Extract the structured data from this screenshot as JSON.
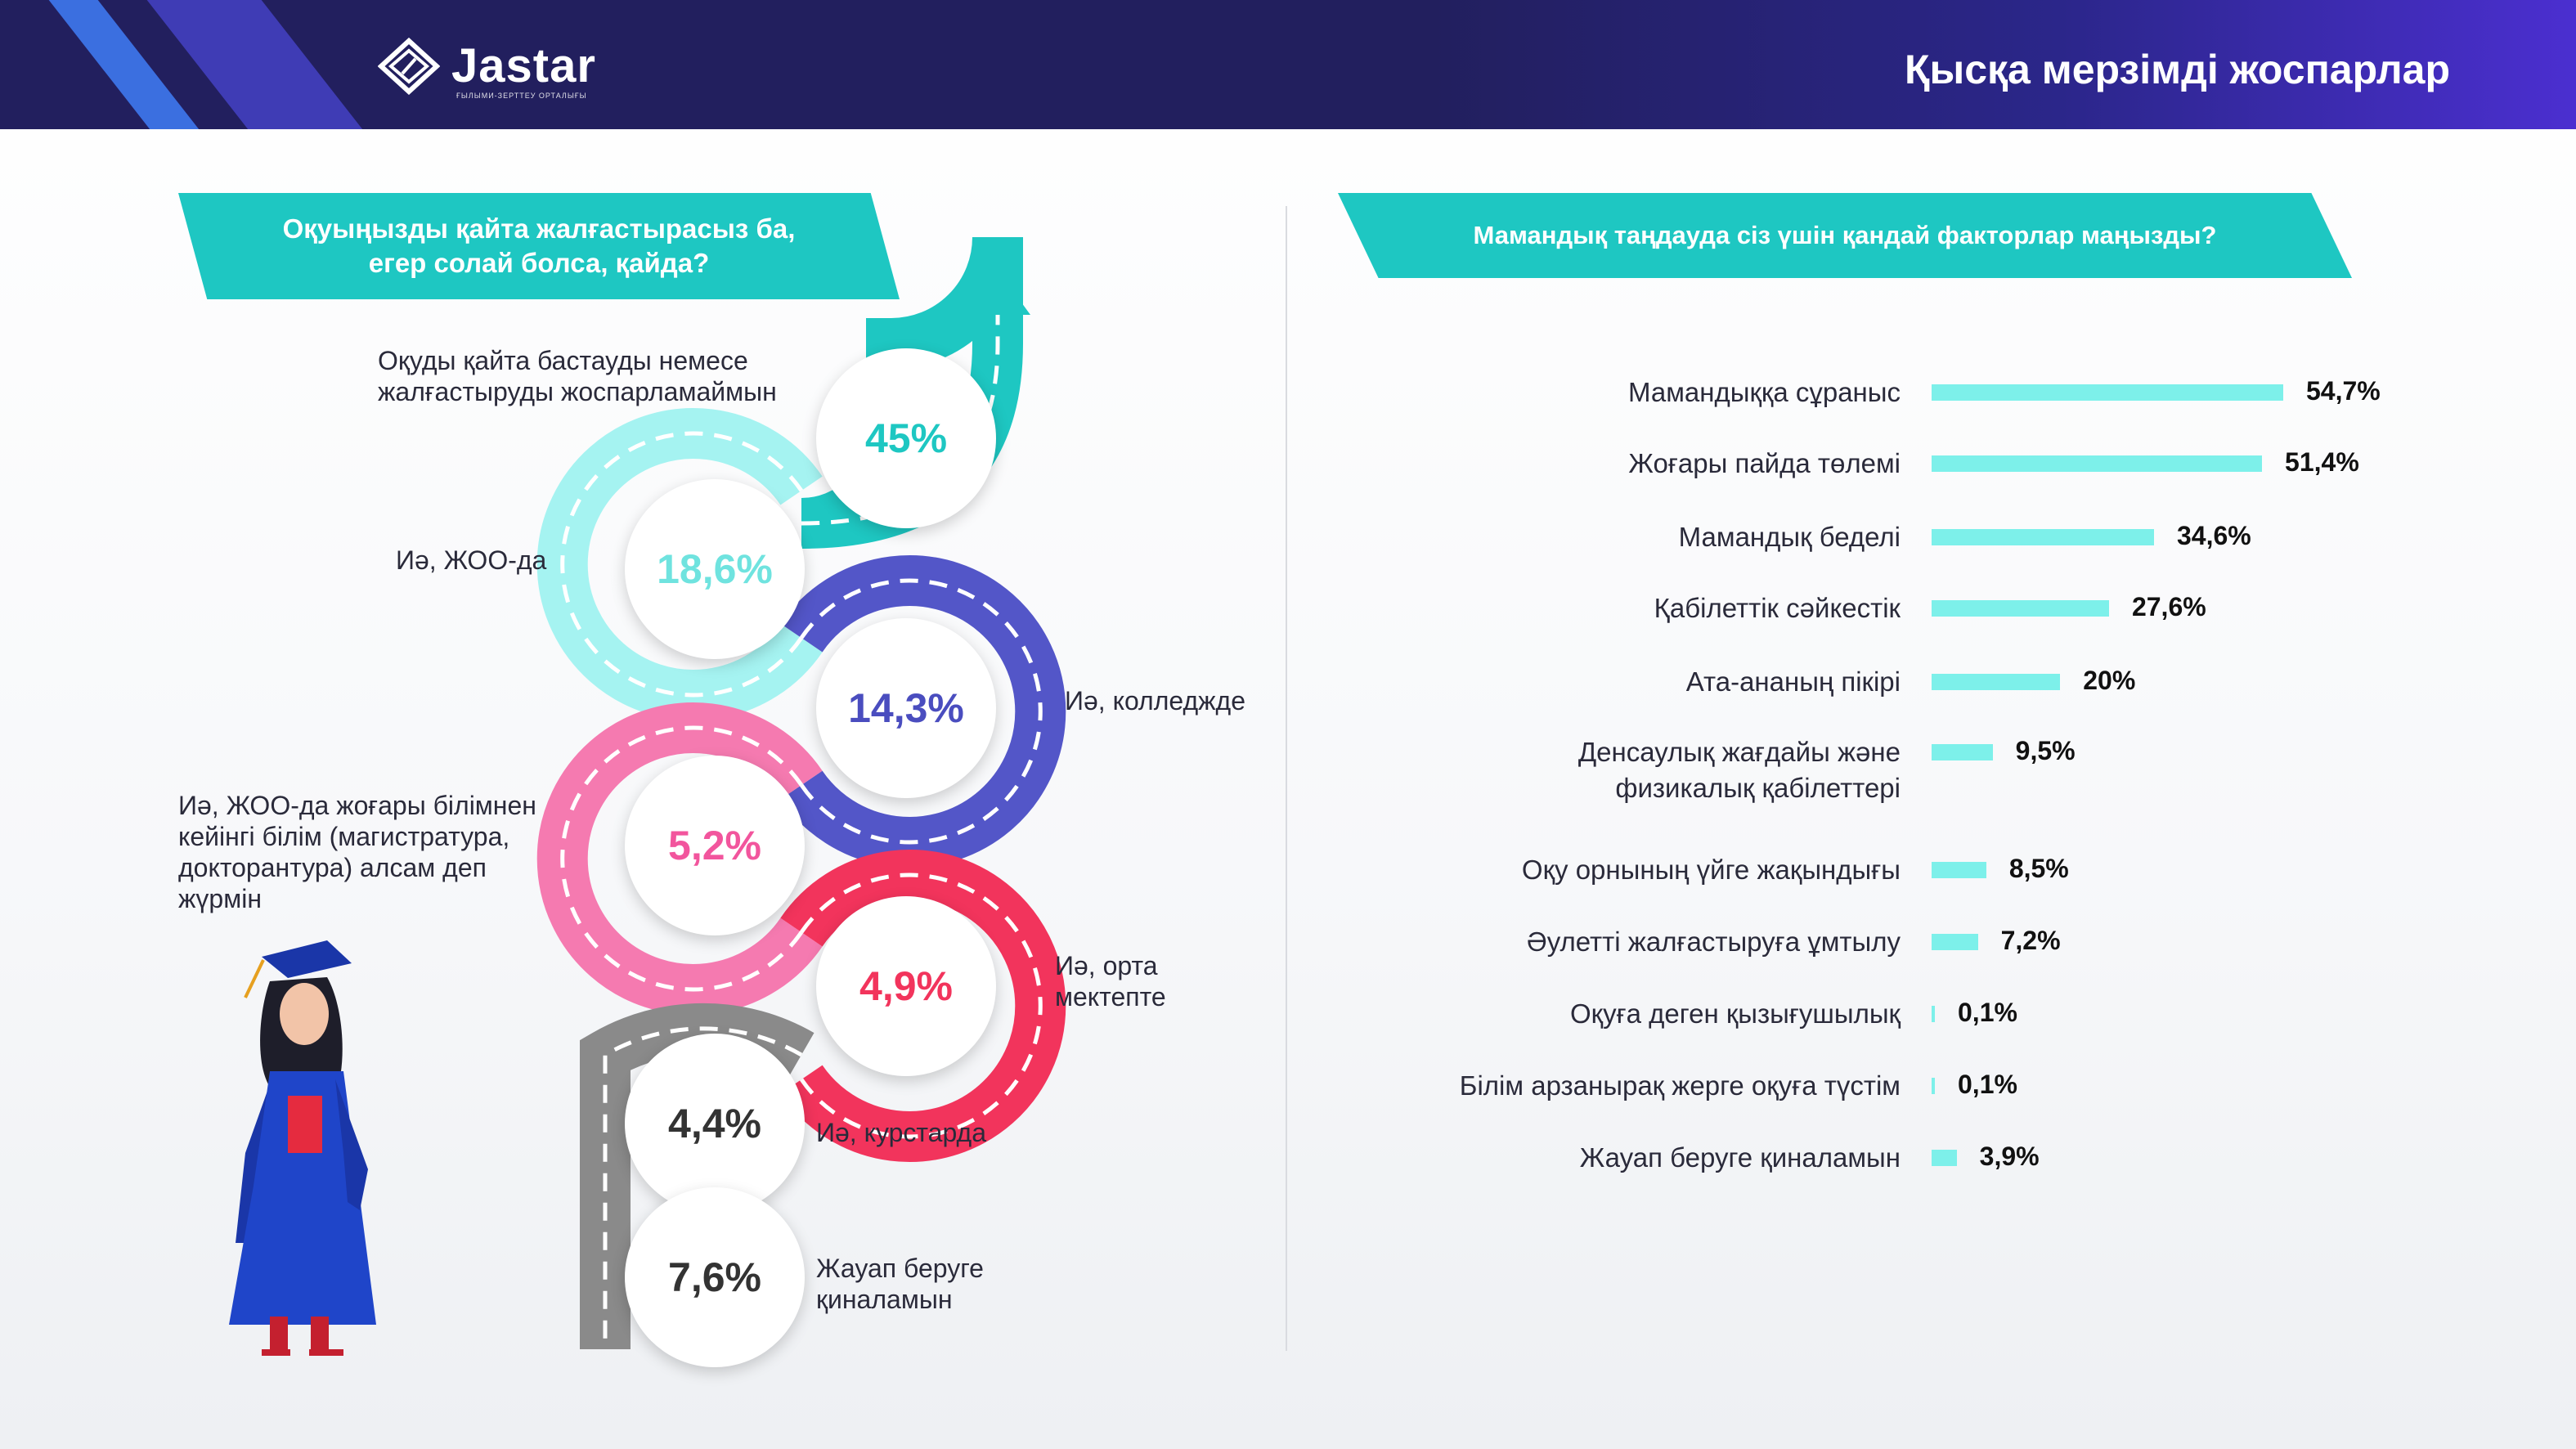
{
  "header": {
    "logo_text": "Jastar",
    "logo_subtext": "ҒЫЛЫМИ-ЗЕРТТЕУ ОРТАЛЫҒЫ",
    "title": "Қысқа мерзімді жоспарлар"
  },
  "left_panel": {
    "question_line1": "Оқуыңызды қайта жалғастырасыз ба,",
    "question_line2": "егер солай болса, қайда?"
  },
  "right_panel": {
    "question": "Мамандық таңдауда сіз үшін қандай факторлар маңызды?"
  },
  "chart_data": [
    {
      "type": "bar",
      "title": "Оқуыңызды қайта жалғастырасыз ба, егер солай болса, қайда?",
      "segments": [
        {
          "label_lines": [
            "Оқуды қайта бастауды немесе",
            "жалғастыруды жоспарламаймын"
          ],
          "value": 45,
          "value_label": "45%",
          "color": "#1ec7c2"
        },
        {
          "label_lines": [
            "Иә, ЖОО-да"
          ],
          "value": 18.6,
          "value_label": "18,6%",
          "color": "#7ee9e6"
        },
        {
          "label_lines": [
            "Иә, колледжде"
          ],
          "value": 14.3,
          "value_label": "14,3%",
          "color": "#5356c8"
        },
        {
          "label_lines": [
            "Иә, ЖОО-да жоғары білімнен",
            "кейінгі білім (магистратура,",
            "докторантура) алсам деп",
            "жүрмін"
          ],
          "value": 5.2,
          "value_label": "5,2%",
          "color": "#f36aa6"
        },
        {
          "label_lines": [
            "Иә, орта",
            "мектепте"
          ],
          "value": 4.9,
          "value_label": "4,9%",
          "color": "#f2345c"
        },
        {
          "label_lines": [
            "Иә, курстарда"
          ],
          "value": 4.4,
          "value_label": "4,4%",
          "color": "#333333"
        },
        {
          "label_lines": [
            "Жауап беруге",
            "қиналамын"
          ],
          "value": 7.6,
          "value_label": "7,6%",
          "color": "#333333"
        }
      ]
    },
    {
      "type": "bar",
      "orientation": "horizontal",
      "title": "Мамандық таңдауда сіз үшін қандай факторлар маңызды?",
      "xlim": [
        0,
        54.7
      ],
      "bar_color": "#7df0ea",
      "categories": [
        [
          "Мамандыққа сұраныс"
        ],
        [
          "Жоғары пайда төлемі"
        ],
        [
          "Мамандық беделі"
        ],
        [
          "Қабілеттік сәйкестік"
        ],
        [
          "Ата-ананың пікірі"
        ],
        [
          "Денсаулық жағдайы және",
          "физикалық қабілеттері"
        ],
        [
          "Оқу орнының үйге жақындығы"
        ],
        [
          "Әулетті жалғастыруға ұмтылу"
        ],
        [
          "Оқуға деген қызығушылық"
        ],
        [
          "Білім арзанырақ жерге оқуға түстім"
        ],
        [
          "Жауап беруге қиналамын"
        ]
      ],
      "values": [
        54.7,
        51.4,
        34.6,
        27.6,
        20,
        9.5,
        8.5,
        7.2,
        0.1,
        0.1,
        3.9
      ],
      "value_labels": [
        "54,7%",
        "51,4%",
        "34,6%",
        "27,6%",
        "20%",
        "9,5%",
        "8,5%",
        "7,2%",
        "0,1%",
        "0,1%",
        "3,9%"
      ]
    }
  ]
}
